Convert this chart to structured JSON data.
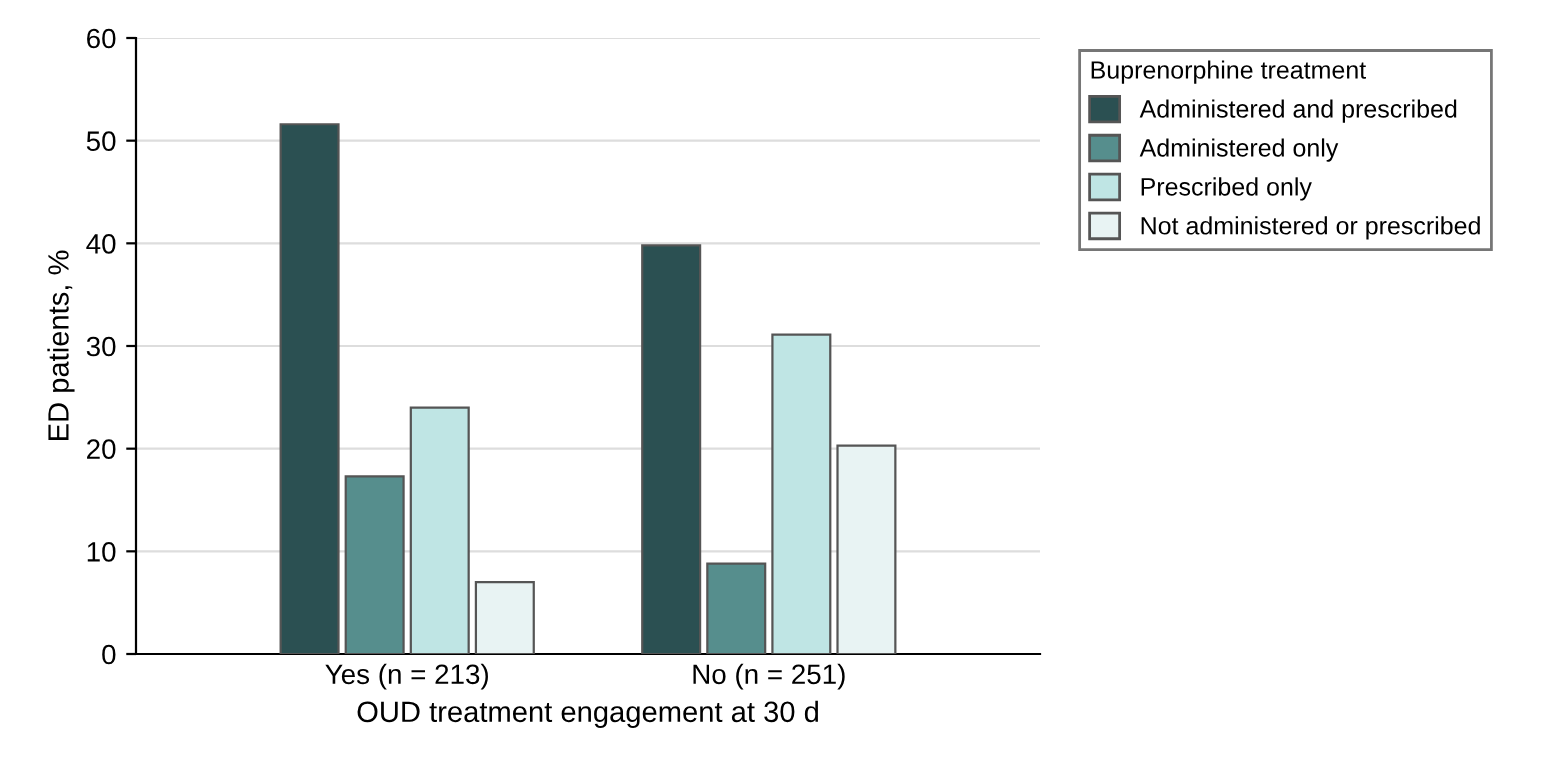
{
  "chart_data": {
    "type": "bar",
    "xlabel": "OUD treatment engagement at 30 d",
    "ylabel": "ED patients, %",
    "legend_title": "Buprenorphine treatment",
    "categories": [
      "Yes (n = 213)",
      "No (n = 251)"
    ],
    "series": [
      {
        "name": "Administered and prescribed",
        "color": "#2b5052",
        "values": [
          51.6,
          39.8
        ]
      },
      {
        "name": "Administered only",
        "color": "#568e8d",
        "values": [
          17.3,
          8.8
        ]
      },
      {
        "name": "Prescribed only",
        "color": "#bfe5e4",
        "values": [
          24.0,
          31.1
        ]
      },
      {
        "name": "Not administered or prescribed",
        "color": "#e8f3f3",
        "values": [
          7.0,
          20.3
        ]
      }
    ],
    "ylim": [
      0,
      60
    ],
    "yticks": [
      0,
      10,
      20,
      30,
      40,
      50,
      60
    ],
    "grid": "y",
    "legend": "right"
  }
}
